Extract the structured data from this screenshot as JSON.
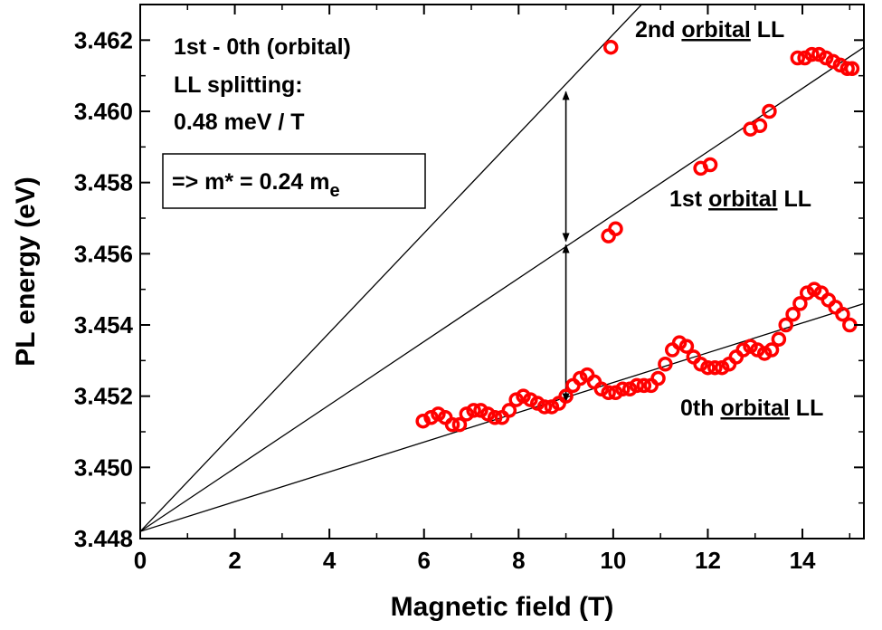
{
  "chart_data": {
    "type": "scatter",
    "xlabel": "Magnetic field (T)",
    "ylabel": "PL energy (eV)",
    "xlim": [
      0,
      15.3
    ],
    "ylim": [
      3.448,
      3.463
    ],
    "xticks": [
      0,
      2,
      4,
      6,
      8,
      10,
      12,
      14
    ],
    "yticks": [
      3.448,
      3.45,
      3.452,
      3.454,
      3.456,
      3.458,
      3.46,
      3.462
    ],
    "xtick_labels": [
      "0",
      "2",
      "4",
      "6",
      "8",
      "10",
      "12",
      "14"
    ],
    "ytick_labels": [
      "3.448",
      "3.450",
      "3.452",
      "3.454",
      "3.456",
      "3.458",
      "3.460",
      "3.462"
    ],
    "grid": false,
    "marker_color": "#ff0000",
    "series": [
      {
        "x": [
          5.98,
          6.15,
          6.3,
          6.45,
          6.6,
          6.75,
          6.9,
          7.05,
          7.2,
          7.35,
          7.5,
          7.65,
          7.8,
          7.95,
          8.1,
          8.25,
          8.4,
          8.55,
          8.7,
          8.85,
          9.0,
          9.15,
          9.3,
          9.45,
          9.6,
          9.75,
          9.9,
          10.05,
          10.2,
          10.35,
          10.5,
          10.65,
          10.8,
          10.95,
          11.1,
          11.25,
          11.4,
          11.55,
          11.7,
          11.85,
          12.0,
          12.15,
          12.3,
          12.45,
          12.6,
          12.75,
          12.9,
          13.05,
          13.2,
          13.35,
          13.5,
          13.65,
          13.8,
          13.95,
          14.1,
          14.25,
          14.4,
          14.55,
          14.7,
          14.85,
          15.0
        ],
        "y": [
          3.4513,
          3.4514,
          3.4515,
          3.4514,
          3.4512,
          3.4512,
          3.4515,
          3.4516,
          3.4516,
          3.4515,
          3.4514,
          3.4514,
          3.4516,
          3.4519,
          3.452,
          3.4519,
          3.4518,
          3.4517,
          3.4517,
          3.4518,
          3.452,
          3.4523,
          3.4525,
          3.4526,
          3.4524,
          3.4522,
          3.4521,
          3.4521,
          3.4522,
          3.4522,
          3.4523,
          3.4523,
          3.4523,
          3.4525,
          3.4529,
          3.4533,
          3.4535,
          3.4534,
          3.4531,
          3.4529,
          3.4528,
          3.4528,
          3.4528,
          3.4529,
          3.4531,
          3.4533,
          3.4534,
          3.4533,
          3.4532,
          3.4533,
          3.4536,
          3.454,
          3.4543,
          3.4546,
          3.4549,
          3.455,
          3.4549,
          3.4547,
          3.4545,
          3.4543,
          3.454
        ]
      },
      {
        "x": [
          9.9,
          10.05,
          11.85,
          12.05,
          12.9,
          13.1,
          13.3
        ],
        "y": [
          3.4565,
          3.4567,
          3.4584,
          3.4585,
          3.4595,
          3.4596,
          3.46
        ]
      },
      {
        "x": [
          9.95,
          13.9,
          14.05,
          14.2,
          14.35,
          14.5,
          14.65,
          14.8,
          14.95,
          15.05
        ],
        "y": [
          3.4618,
          3.4615,
          3.4615,
          3.4616,
          3.4616,
          3.4615,
          3.4614,
          3.4613,
          3.4612,
          3.4612
        ]
      }
    ],
    "fit_lines": [
      {
        "x": [
          0,
          15.3
        ],
        "y": [
          3.4482,
          3.4546
        ]
      },
      {
        "x": [
          0,
          15.3
        ],
        "y": [
          3.4482,
          3.4618
        ]
      },
      {
        "x": [
          0,
          10.6
        ],
        "y": [
          3.4482,
          3.463
        ]
      }
    ],
    "arrows": [
      {
        "x": 9.0,
        "y_from": 3.4563,
        "y_to": 3.4606
      },
      {
        "x": 9.0,
        "y_from": 3.4518,
        "y_to": 3.4563
      }
    ],
    "annotations": {
      "line1": "1st - 0th (orbital)",
      "line2": "LL splitting:",
      "line3": "0.48 meV / T",
      "mass_prefix": "=> m* = 0.24 m",
      "mass_sub": "e",
      "label_2nd_prefix": "2nd ",
      "label_2nd_word": "orbital",
      "label_2nd_suffix": " LL",
      "label_1st_prefix": "1st ",
      "label_1st_word": "orbital",
      "label_1st_suffix": " LL",
      "label_0th_prefix": "0th ",
      "label_0th_word": "orbital",
      "label_0th_suffix": " LL"
    }
  }
}
